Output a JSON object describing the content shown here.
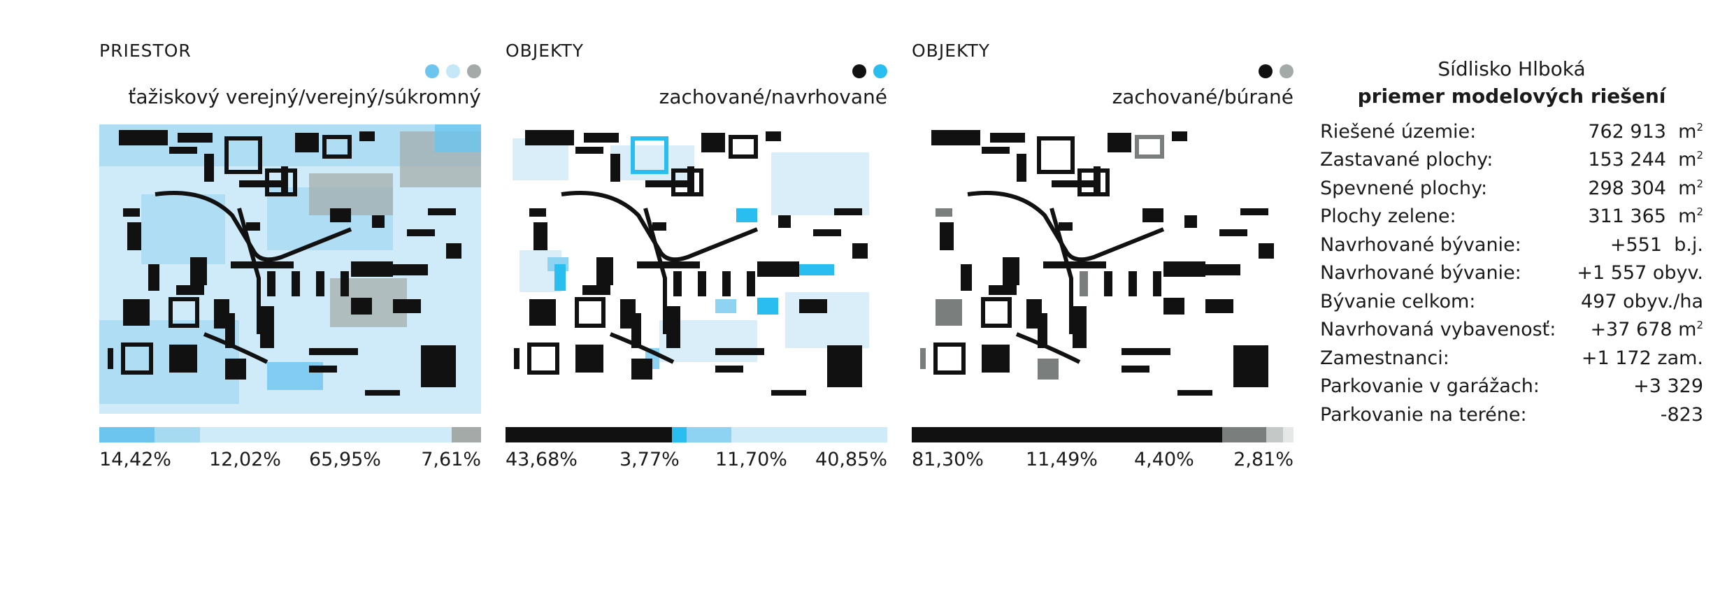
{
  "panels": [
    {
      "title": "PRIESTOR",
      "subtitle": "ťažiskový verejný/verejný/súkromný",
      "legend_colors": [
        "#6bc5ef",
        "#c6e7f7",
        "#a3aaa7"
      ],
      "bar": [
        {
          "pct": 14.42,
          "color": "#6bc5ef"
        },
        {
          "pct": 12.02,
          "color": "#a6daf3"
        },
        {
          "pct": 65.95,
          "color": "#cfeaf8"
        },
        {
          "pct": 7.61,
          "color": "#a3aaa7"
        }
      ],
      "labels": [
        "14,42%",
        "12,02%",
        "65,95%",
        "7,61%"
      ]
    },
    {
      "title": "OBJEKTY",
      "subtitle": "zachované/navrhované",
      "legend_colors": [
        "#111111",
        "#29bdf0"
      ],
      "bar": [
        {
          "pct": 43.68,
          "color": "#111111"
        },
        {
          "pct": 3.77,
          "color": "#29bdf0"
        },
        {
          "pct": 11.7,
          "color": "#8fd3f3"
        },
        {
          "pct": 40.85,
          "color": "#cfeaf8"
        }
      ],
      "labels": [
        "43,68%",
        "3,77%",
        "11,70%",
        "40,85%"
      ]
    },
    {
      "title": "OBJEKTY",
      "subtitle": "zachované/búrané",
      "legend_colors": [
        "#111111",
        "#a3aaa7"
      ],
      "bar": [
        {
          "pct": 81.3,
          "color": "#111111"
        },
        {
          "pct": 11.49,
          "color": "#7a7f7d"
        },
        {
          "pct": 4.4,
          "color": "#c4c9c7"
        },
        {
          "pct": 2.81,
          "color": "#e6e8e7"
        }
      ],
      "labels": [
        "81,30%",
        "11,49%",
        "4,40%",
        "2,81%"
      ]
    }
  ],
  "stats": {
    "title": "Sídlisko Hlboká",
    "subtitle": "priemer modelových riešení",
    "rows": [
      {
        "label": "Riešené územie:",
        "value": "762 913",
        "unit": "m",
        "sup": "2"
      },
      {
        "label": "Zastavané plochy:",
        "value": "153 244",
        "unit": "m",
        "sup": "2"
      },
      {
        "label": "Spevnené plochy:",
        "value": "298 304",
        "unit": "m",
        "sup": "2"
      },
      {
        "label": "Plochy zelene:",
        "value": "311 365",
        "unit": "m",
        "sup": "2"
      },
      {
        "label": "Navrhované bývanie:",
        "value": "+551",
        "unit": "b.j.",
        "sup": ""
      },
      {
        "label": "Navrhované bývanie:",
        "value": "+1 557",
        "unit": "obyv.",
        "sup": ""
      },
      {
        "label": "Bývanie celkom:",
        "value": "497",
        "unit": "obyv./ha",
        "sup": ""
      },
      {
        "label": "Navrhovaná vybavenosť:",
        "value": "+37 678",
        "unit": "m",
        "sup": "2"
      },
      {
        "label": "Zamestnanci:",
        "value": "+1 172",
        "unit": "zam.",
        "sup": ""
      },
      {
        "label": "Parkovanie v garážach:",
        "value": "+3 329",
        "unit": "",
        "sup": ""
      },
      {
        "label": "Parkovanie na teréne:",
        "value": "-823",
        "unit": "",
        "sup": ""
      }
    ]
  }
}
